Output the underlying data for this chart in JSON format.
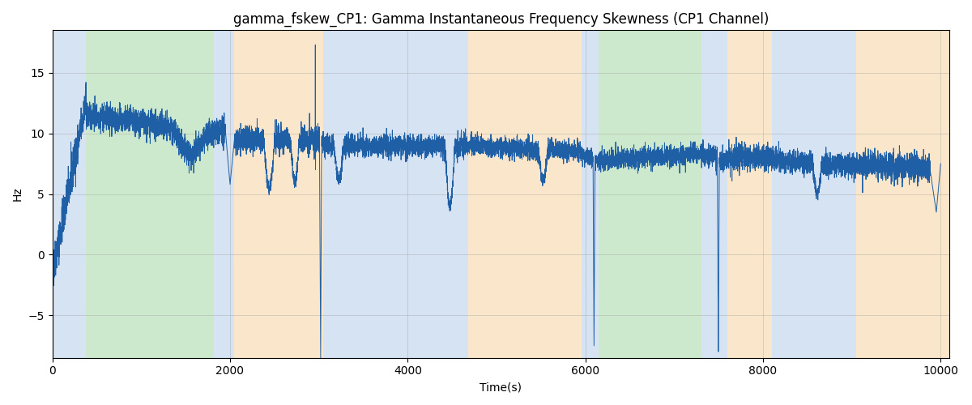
{
  "title": "gamma_fskew_CP1: Gamma Instantaneous Frequency Skewness (CP1 Channel)",
  "xlabel": "Time(s)",
  "ylabel": "Hz",
  "xlim": [
    0,
    10100
  ],
  "ylim": [
    -8.5,
    18.5
  ],
  "line_color": "#1f5fa6",
  "line_width": 0.7,
  "grid_color": "#999999",
  "grid_alpha": 0.5,
  "grid_lw": 0.5,
  "bg_bands": [
    {
      "start": 0,
      "end": 380,
      "color": "#adc8e8",
      "alpha": 0.5
    },
    {
      "start": 380,
      "end": 1820,
      "color": "#90d090",
      "alpha": 0.45
    },
    {
      "start": 1820,
      "end": 2050,
      "color": "#adc8e8",
      "alpha": 0.5
    },
    {
      "start": 2050,
      "end": 3050,
      "color": "#f5c98a",
      "alpha": 0.45
    },
    {
      "start": 3050,
      "end": 4680,
      "color": "#adc8e8",
      "alpha": 0.5
    },
    {
      "start": 4680,
      "end": 5960,
      "color": "#f5c98a",
      "alpha": 0.45
    },
    {
      "start": 5960,
      "end": 6150,
      "color": "#adc8e8",
      "alpha": 0.5
    },
    {
      "start": 6150,
      "end": 7310,
      "color": "#90d090",
      "alpha": 0.45
    },
    {
      "start": 7310,
      "end": 7600,
      "color": "#adc8e8",
      "alpha": 0.5
    },
    {
      "start": 7600,
      "end": 8100,
      "color": "#f5c98a",
      "alpha": 0.45
    },
    {
      "start": 8100,
      "end": 9050,
      "color": "#adc8e8",
      "alpha": 0.5
    },
    {
      "start": 9050,
      "end": 10100,
      "color": "#f5c98a",
      "alpha": 0.45
    }
  ],
  "xticks": [
    0,
    2000,
    4000,
    6000,
    8000,
    10000
  ],
  "yticks": [
    -5,
    0,
    5,
    10,
    15
  ],
  "title_fontsize": 12,
  "seed": 42,
  "n_points": 10000
}
